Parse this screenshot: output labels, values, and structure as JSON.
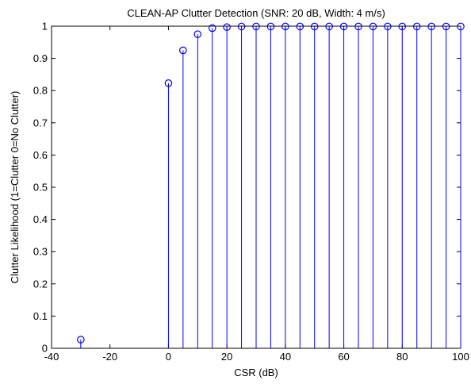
{
  "chart_data": {
    "type": "stem",
    "title": "CLEAN-AP Clutter Detection (SNR: 20 dB, Width: 4 m/s)",
    "xlabel": "CSR (dB)",
    "ylabel": "Clutter Likelihood (1=Clutter 0=No Clutter)",
    "xlim": [
      -40,
      100
    ],
    "ylim": [
      0,
      1
    ],
    "xticks": [
      -40,
      -20,
      0,
      20,
      40,
      60,
      80,
      100
    ],
    "xtick_labels": [
      "-40",
      "-20",
      "0",
      "20",
      "40",
      "60",
      "80",
      "100"
    ],
    "yticks": [
      0,
      0.1,
      0.2,
      0.3,
      0.4,
      0.5,
      0.6,
      0.7,
      0.8,
      0.9,
      1
    ],
    "ytick_labels": [
      "0",
      "0.1",
      "0.2",
      "0.3",
      "0.4",
      "0.5",
      "0.6",
      "0.7",
      "0.8",
      "0.9",
      "1"
    ],
    "grid": false,
    "color": "#0000ff",
    "x": [
      -30,
      0,
      5,
      10,
      15,
      20,
      25,
      30,
      35,
      40,
      45,
      50,
      55,
      60,
      65,
      70,
      75,
      80,
      85,
      90,
      95,
      100
    ],
    "y": [
      0.027,
      0.823,
      0.925,
      0.975,
      0.994,
      0.997,
      0.999,
      0.999,
      0.999,
      0.999,
      0.999,
      0.999,
      0.999,
      0.999,
      0.999,
      0.999,
      0.999,
      0.999,
      0.999,
      0.999,
      0.999,
      0.999
    ]
  }
}
